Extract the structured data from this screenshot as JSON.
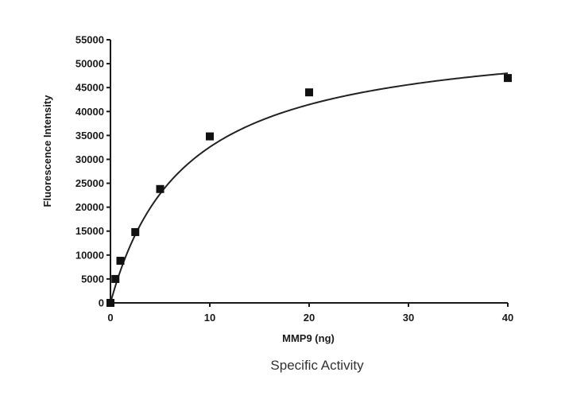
{
  "chart_data": {
    "type": "scatter",
    "title": "",
    "caption": "Specific Activity",
    "xlabel": "MMP9 (ng)",
    "ylabel": "Fluorescence Intensity",
    "xlim": [
      0,
      40
    ],
    "ylim": [
      0,
      55000
    ],
    "x_ticks": [
      0,
      10,
      20,
      30,
      40
    ],
    "y_ticks": [
      0,
      5000,
      10000,
      15000,
      20000,
      25000,
      30000,
      35000,
      40000,
      45000,
      50000,
      55000
    ],
    "grid": false,
    "points": {
      "x": [
        0,
        0.5,
        1,
        2.5,
        5,
        10,
        20,
        40
      ],
      "y": [
        0,
        5000,
        8800,
        14800,
        23800,
        34800,
        44000,
        47000
      ]
    },
    "fit_curve": {
      "model": "hyperbolic",
      "vmax": 57000,
      "km": 7.5
    },
    "colors": {
      "marker": "#111111",
      "curve": "#222222",
      "axis": "#1a1a1a"
    }
  }
}
